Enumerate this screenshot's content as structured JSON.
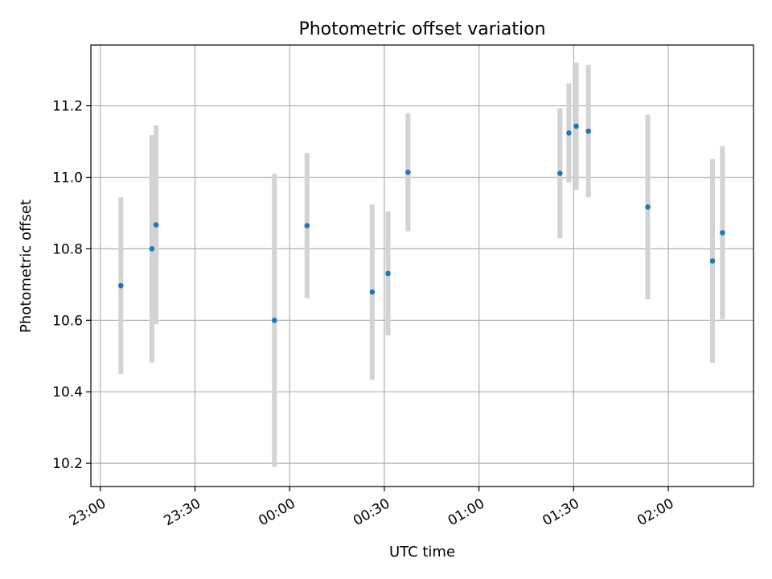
{
  "chart_data": {
    "type": "scatter",
    "title": "Photometric offset variation",
    "xlabel": "UTC time",
    "ylabel": "Photometric offset",
    "x_ticks": [
      "23:00",
      "23:30",
      "00:00",
      "00:30",
      "01:00",
      "01:30",
      "02:00"
    ],
    "y_ticks": [
      "10.2",
      "10.4",
      "10.6",
      "10.8",
      "11.0",
      "11.2"
    ],
    "xlim": [
      "22:57",
      "02:27"
    ],
    "ylim": [
      10.135,
      11.37
    ],
    "grid": true,
    "marker_color": "#1f77b4",
    "errorbar_color": "#d3d3d3",
    "points": [
      {
        "time": "23:06:30",
        "y": 10.697,
        "err": 0.247
      },
      {
        "time": "23:16:20",
        "y": 10.8,
        "err": 0.318
      },
      {
        "time": "23:17:40",
        "y": 10.867,
        "err": 0.278
      },
      {
        "time": "23:55:10",
        "y": 10.6,
        "err": 0.41
      },
      {
        "time": "00:05:30",
        "y": 10.865,
        "err": 0.203
      },
      {
        "time": "00:26:10",
        "y": 10.679,
        "err": 0.245
      },
      {
        "time": "00:31:10",
        "y": 10.731,
        "err": 0.173
      },
      {
        "time": "00:37:30",
        "y": 11.014,
        "err": 0.165
      },
      {
        "time": "01:25:40",
        "y": 11.011,
        "err": 0.182
      },
      {
        "time": "01:28:30",
        "y": 11.124,
        "err": 0.139
      },
      {
        "time": "01:30:50",
        "y": 11.143,
        "err": 0.178
      },
      {
        "time": "01:34:40",
        "y": 11.129,
        "err": 0.185
      },
      {
        "time": "01:53:30",
        "y": 10.917,
        "err": 0.258
      },
      {
        "time": "02:14:00",
        "y": 10.766,
        "err": 0.285
      },
      {
        "time": "02:17:10",
        "y": 10.845,
        "err": 0.242
      }
    ]
  }
}
